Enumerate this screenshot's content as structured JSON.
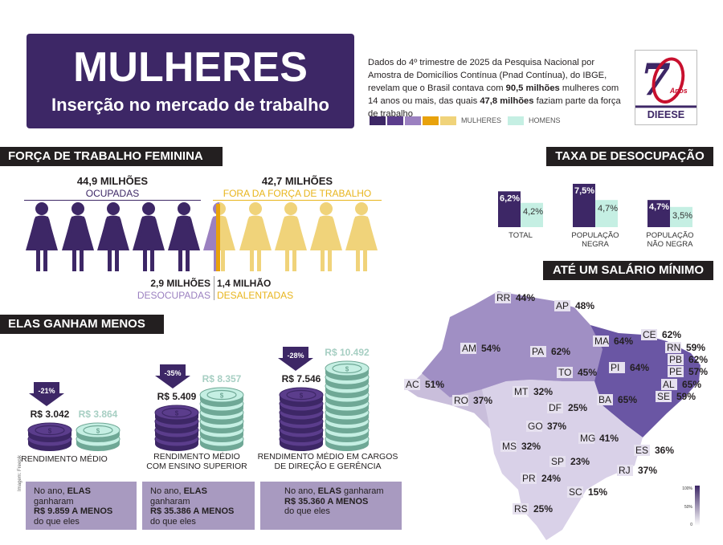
{
  "header": {
    "title": "MULHERES",
    "subtitle": "Inserção no mercado de trabalho",
    "intro_a": "Dados do 4º trimestre de 2025 da Pesquisa Nacional por Amostra de Domicílios Contínua (Pnad Contínua), do IBGE, revelam que o Brasil contava com ",
    "intro_b": "90,5 milhões",
    "intro_c": " mulheres com 14 anos ou mais, das quais ",
    "intro_d": "47,8 milhões",
    "intro_e": " faziam parte da força de trabalho",
    "legend_women": "MULHERES",
    "legend_men": "HOMENS",
    "logo_years": "Anos",
    "logo_org": "DIEESE"
  },
  "colors": {
    "dark_purple": "#3d2766",
    "mid_purple": "#5b3d8c",
    "light_purple": "#9b80c0",
    "orange": "#e8a20c",
    "yellow": "#f0d37a",
    "mint": "#c5efe3"
  },
  "forca": {
    "heading": "FORÇA DE TRABALHO FEMININA",
    "ocupadas_num": "44,9 MILHÕES",
    "ocupadas_label": "OCUPADAS",
    "fora_num": "42,7 MILHÕES",
    "fora_label": "FORA DA FORÇA DE TRABALHO",
    "deso_num": "2,9 MILHÕES",
    "deso_label": "DESOCUPADAS",
    "desa_num": "1,4 MILHÃO",
    "desa_label": "DESALENTADAS"
  },
  "taxa": {
    "heading": "TAXA DE DESOCUPAÇÃO",
    "groups": [
      {
        "label1": "TOTAL",
        "label2": "",
        "women": 6.2,
        "men": 4.2,
        "women_text": "6,2%",
        "men_text": "4,2%"
      },
      {
        "label1": "POPULAÇÃO",
        "label2": "NEGRA",
        "women": 7.5,
        "men": 4.7,
        "women_text": "7,5%",
        "men_text": "4,7%"
      },
      {
        "label1": "POPULAÇÃO",
        "label2": "NÃO NEGRA",
        "women": 4.7,
        "men": 3.5,
        "women_text": "4,7%",
        "men_text": "3,5%"
      }
    ]
  },
  "ganham": {
    "heading": "ELAS GANHAM MENOS",
    "items": [
      {
        "diff": "-21%",
        "women": "R$ 3.042",
        "men": "R$ 3.864",
        "desc1": "RENDIMENTO MÉDIO",
        "desc2": "",
        "gap_a": "No ano, ",
        "gap_b": "ELAS",
        "gap_c": " ganharam ",
        "gap_d": "R$ 9.859 A MENOS",
        "gap_e": "do que eles"
      },
      {
        "diff": "-35%",
        "women": "R$ 5.409",
        "men": "R$ 8.357",
        "desc1": "RENDIMENTO MÉDIO",
        "desc2": "COM ENSINO SUPERIOR",
        "gap_a": "No ano, ",
        "gap_b": "ELAS",
        "gap_c": " ganharam ",
        "gap_d": "R$ 35.386 A MENOS",
        "gap_e": "do que eles"
      },
      {
        "diff": "-28%",
        "women": "R$ 7.546",
        "men": "R$ 10.492",
        "desc1": "RENDIMENTO MÉDIO EM CARGOS",
        "desc2": "DE DIREÇÃO E GERÊNCIA",
        "gap_a": "No ano, ",
        "gap_b": "ELAS",
        "gap_c": " ganharam ",
        "gap_d": "R$ 35.360 A MENOS",
        "gap_e": "do que eles"
      }
    ],
    "credit": "Imagem: Freepik"
  },
  "salario": {
    "heading": "ATÉ UM SALÁRIO MÍNIMO",
    "scale_top": "100%",
    "scale_mid": "50%",
    "scale_bottom": "0",
    "states": [
      {
        "uf": "RR",
        "pct": "44%"
      },
      {
        "uf": "AP",
        "pct": "48%"
      },
      {
        "uf": "AM",
        "pct": "54%"
      },
      {
        "uf": "PA",
        "pct": "62%"
      },
      {
        "uf": "MA",
        "pct": "64%"
      },
      {
        "uf": "CE",
        "pct": "62%"
      },
      {
        "uf": "RN",
        "pct": "59%"
      },
      {
        "uf": "PB",
        "pct": "62%"
      },
      {
        "uf": "PE",
        "pct": "57%"
      },
      {
        "uf": "AL",
        "pct": "65%"
      },
      {
        "uf": "SE",
        "pct": "59%"
      },
      {
        "uf": "PI",
        "pct": "64%"
      },
      {
        "uf": "TO",
        "pct": "45%"
      },
      {
        "uf": "BA",
        "pct": "65%"
      },
      {
        "uf": "AC",
        "pct": "51%"
      },
      {
        "uf": "RO",
        "pct": "37%"
      },
      {
        "uf": "MT",
        "pct": "32%"
      },
      {
        "uf": "DF",
        "pct": "25%"
      },
      {
        "uf": "GO",
        "pct": "37%"
      },
      {
        "uf": "MG",
        "pct": "41%"
      },
      {
        "uf": "MS",
        "pct": "32%"
      },
      {
        "uf": "ES",
        "pct": "36%"
      },
      {
        "uf": "SP",
        "pct": "23%"
      },
      {
        "uf": "RJ",
        "pct": "37%"
      },
      {
        "uf": "PR",
        "pct": "24%"
      },
      {
        "uf": "SC",
        "pct": "15%"
      },
      {
        "uf": "RS",
        "pct": "25%"
      }
    ]
  }
}
